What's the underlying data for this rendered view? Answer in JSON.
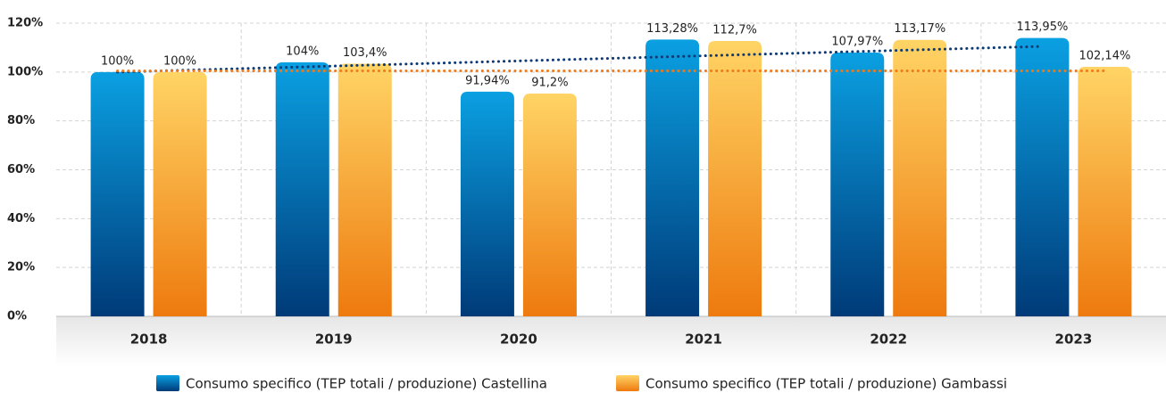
{
  "chart_data": {
    "type": "bar",
    "categories": [
      "2018",
      "2019",
      "2020",
      "2021",
      "2022",
      "2023"
    ],
    "series": [
      {
        "name": "Consumo specifico (TEP totali / produzione) Castellina",
        "color": "#0a5ba8",
        "values": [
          100,
          104,
          91.94,
          113.28,
          107.97,
          113.95
        ],
        "value_labels": [
          "100%",
          "104%",
          "91,94%",
          "113,28%",
          "107,97%",
          "113,95%"
        ],
        "trend": [
          100,
          110.5
        ],
        "trend_color": "#0d3a75"
      },
      {
        "name": "Consumo specifico (TEP totali / produzione) Gambassi",
        "color": "#f7a532",
        "values": [
          100,
          103.4,
          91.2,
          112.7,
          113.17,
          102.14
        ],
        "value_labels": [
          "100%",
          "103,4%",
          "91,2%",
          "112,7%",
          "113,17%",
          "102,14%"
        ],
        "trend": [
          100.5,
          100.5
        ],
        "trend_color": "#f07a1a"
      }
    ],
    "ylim": [
      0,
      120
    ],
    "yticks": [
      {
        "value": 0,
        "label": "0%"
      },
      {
        "value": 20,
        "label": "20%"
      },
      {
        "value": 40,
        "label": "40%"
      },
      {
        "value": 60,
        "label": "60%"
      },
      {
        "value": 80,
        "label": "80%"
      },
      {
        "value": 100,
        "label": "100%"
      },
      {
        "value": 120,
        "label": "120%"
      }
    ],
    "grid": true,
    "legend": "bottom"
  }
}
